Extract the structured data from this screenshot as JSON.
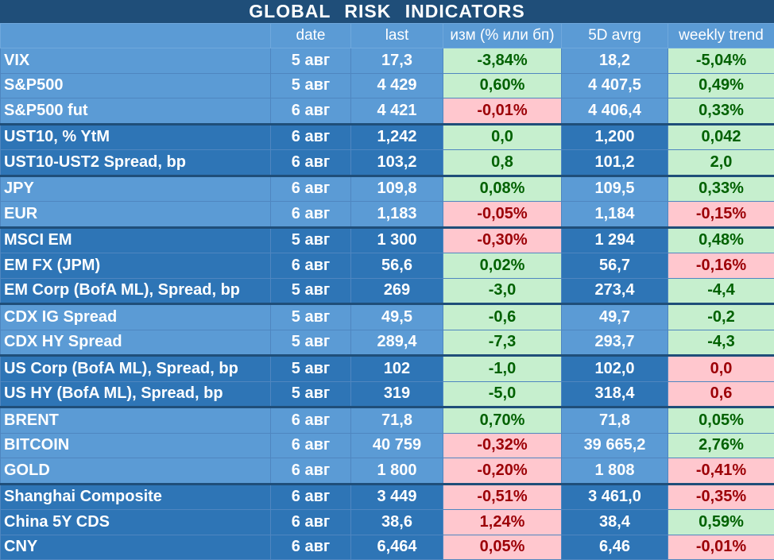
{
  "title": "GLOBAL  RISK  INDICATORS",
  "headers": [
    "",
    "date",
    "last",
    "изм (% или бп)",
    "5D avrg",
    "weekly trend"
  ],
  "colors": {
    "header_bg": "#1f4e79",
    "cell_light": "#5b9bd5",
    "cell_dark": "#2e75b6",
    "positive_bg": "#c6efce",
    "positive_text": "#006100",
    "negative_bg": "#ffc7ce",
    "negative_text": "#9c0006"
  },
  "rows": [
    {
      "name": "VIX",
      "date": "5 авг",
      "last": "17,3",
      "change": "-3,84%",
      "change_status": "pos",
      "avg5d": "18,2",
      "weekly": "-5,04%",
      "weekly_status": "pos"
    },
    {
      "name": "S&P500",
      "date": "5 авг",
      "last": "4 429",
      "change": "0,60%",
      "change_status": "pos",
      "avg5d": "4 407,5",
      "weekly": "0,49%",
      "weekly_status": "pos"
    },
    {
      "name": "S&P500 fut",
      "date": "6 авг",
      "last": "4 421",
      "change": "-0,01%",
      "change_status": "neg",
      "avg5d": "4 406,4",
      "weekly": "0,33%",
      "weekly_status": "pos"
    },
    {
      "name": "UST10, % YtM",
      "date": "6 авг",
      "last": "1,242",
      "change": "0,0",
      "change_status": "pos",
      "avg5d": "1,200",
      "weekly": "0,042",
      "weekly_status": "pos"
    },
    {
      "name": "UST10-UST2 Spread, bp",
      "date": "6 авг",
      "last": "103,2",
      "change": "0,8",
      "change_status": "pos",
      "avg5d": "101,2",
      "weekly": "2,0",
      "weekly_status": "pos"
    },
    {
      "name": "JPY",
      "date": "6 авг",
      "last": "109,8",
      "change": "0,08%",
      "change_status": "pos",
      "avg5d": "109,5",
      "weekly": "0,33%",
      "weekly_status": "pos"
    },
    {
      "name": "EUR",
      "date": "6 авг",
      "last": "1,183",
      "change": "-0,05%",
      "change_status": "neg",
      "avg5d": "1,184",
      "weekly": "-0,15%",
      "weekly_status": "neg"
    },
    {
      "name": "MSCI EM",
      "date": "5 авг",
      "last": "1 300",
      "change": "-0,30%",
      "change_status": "neg",
      "avg5d": "1 294",
      "weekly": "0,48%",
      "weekly_status": "pos"
    },
    {
      "name": "EM FX (JPM)",
      "date": "6 авг",
      "last": "56,6",
      "change": "0,02%",
      "change_status": "pos",
      "avg5d": "56,7",
      "weekly": "-0,16%",
      "weekly_status": "neg"
    },
    {
      "name": "EM Corp (BofA ML), Spread, bp",
      "date": "5 авг",
      "last": "269",
      "change": "-3,0",
      "change_status": "pos",
      "avg5d": "273,4",
      "weekly": "-4,4",
      "weekly_status": "pos"
    },
    {
      "name": "CDX IG Spread",
      "date": "5 авг",
      "last": "49,5",
      "change": "-0,6",
      "change_status": "pos",
      "avg5d": "49,7",
      "weekly": "-0,2",
      "weekly_status": "pos"
    },
    {
      "name": "CDX HY Spread",
      "date": "5 авг",
      "last": "289,4",
      "change": "-7,3",
      "change_status": "pos",
      "avg5d": "293,7",
      "weekly": "-4,3",
      "weekly_status": "pos"
    },
    {
      "name": "US Corp (BofA ML), Spread, bp",
      "date": "5 авг",
      "last": "102",
      "change": "-1,0",
      "change_status": "pos",
      "avg5d": "102,0",
      "weekly": "0,0",
      "weekly_status": "neg"
    },
    {
      "name": "US HY (BofA ML), Spread, bp",
      "date": "5 авг",
      "last": "319",
      "change": "-5,0",
      "change_status": "pos",
      "avg5d": "318,4",
      "weekly": "0,6",
      "weekly_status": "neg"
    },
    {
      "name": "BRENT",
      "date": "6 авг",
      "last": "71,8",
      "change": "0,70%",
      "change_status": "pos",
      "avg5d": "71,8",
      "weekly": "0,05%",
      "weekly_status": "pos"
    },
    {
      "name": "BITCOIN",
      "date": "6 авг",
      "last": "40 759",
      "change": "-0,32%",
      "change_status": "neg",
      "avg5d": "39 665,2",
      "weekly": "2,76%",
      "weekly_status": "pos"
    },
    {
      "name": "GOLD",
      "date": "6 авг",
      "last": "1 800",
      "change": "-0,20%",
      "change_status": "neg",
      "avg5d": "1 808",
      "weekly": "-0,41%",
      "weekly_status": "neg"
    },
    {
      "name": "Shanghai Composite",
      "date": "6 авг",
      "last": "3 449",
      "change": "-0,51%",
      "change_status": "neg",
      "avg5d": "3 461,0",
      "weekly": "-0,35%",
      "weekly_status": "neg"
    },
    {
      "name": "China 5Y CDS",
      "date": "6 авг",
      "last": "38,6",
      "change": "1,24%",
      "change_status": "neg",
      "avg5d": "38,4",
      "weekly": "0,59%",
      "weekly_status": "pos"
    },
    {
      "name": "CNY",
      "date": "6 авг",
      "last": "6,464",
      "change": "0,05%",
      "change_status": "neg",
      "avg5d": "6,46",
      "weekly": "-0,01%",
      "weekly_status": "neg"
    }
  ]
}
